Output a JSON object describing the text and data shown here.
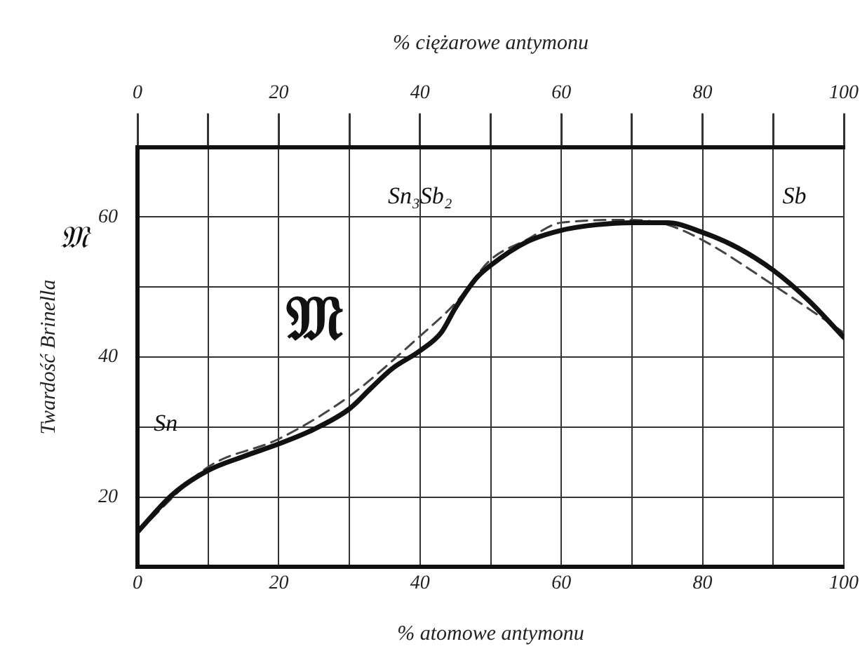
{
  "chart_data": {
    "type": "line",
    "xlabel": "% atomowe antymonu",
    "x2label": "% ciężarowe antymonu",
    "ylabel": "Twardość Brinella",
    "xlim": [
      0,
      100
    ],
    "xticks": [
      0,
      {
        "value": 10,
        "label": null
      },
      20,
      {
        "value": 30,
        "label": null
      },
      40,
      {
        "value": 50,
        "label": null
      },
      60,
      {
        "value": 70,
        "label": null
      },
      80,
      {
        "value": 90,
        "label": null
      },
      100
    ],
    "x2lim": [
      0,
      100
    ],
    "x2ticks": [
      0,
      {
        "value": 10,
        "label": null
      },
      20,
      {
        "value": 30,
        "label": null
      },
      40,
      {
        "value": 50,
        "label": null
      },
      60,
      {
        "value": 70,
        "label": null
      },
      80,
      {
        "value": 90,
        "label": null
      },
      100
    ],
    "ylim": [
      10,
      70
    ],
    "yticks": [
      {
        "value": 10,
        "label": null
      },
      20,
      {
        "value": 30,
        "label": null
      },
      40,
      {
        "value": 50,
        "label": null
      },
      60,
      {
        "value": 70,
        "label": null
      }
    ],
    "grid": true,
    "legend": false,
    "marker": "none",
    "series": [
      {
        "color": "#111111",
        "line_style": "solid",
        "x": [
          0,
          5,
          10,
          15,
          20,
          25,
          30,
          33,
          36,
          40,
          43,
          45,
          48,
          50,
          55,
          60,
          65,
          70,
          75,
          80,
          85,
          90,
          95,
          100
        ],
        "values": [
          15,
          20.4,
          23.8,
          25.8,
          27.6,
          29.7,
          32.6,
          35.5,
          38.3,
          40.9,
          43.5,
          47,
          51.3,
          53.1,
          56.4,
          58.1,
          58.9,
          59.2,
          59.2,
          57.8,
          55.6,
          52.4,
          48.1,
          42.8
        ]
      },
      {
        "color": "#444444",
        "line_style": "dashed",
        "x": [
          0,
          10,
          20,
          30,
          40,
          45,
          50,
          55,
          60,
          70,
          75,
          80,
          90,
          100
        ],
        "values": [
          15,
          24.3,
          28.3,
          34.4,
          43,
          47.7,
          53.9,
          56.7,
          59.2,
          59.6,
          58.9,
          56.7,
          50.3,
          43.5
        ]
      }
    ],
    "annotations": [
      "𝔐",
      "Sn",
      "Sn₃Sb₂",
      "Sb",
      "𝔐"
    ]
  }
}
